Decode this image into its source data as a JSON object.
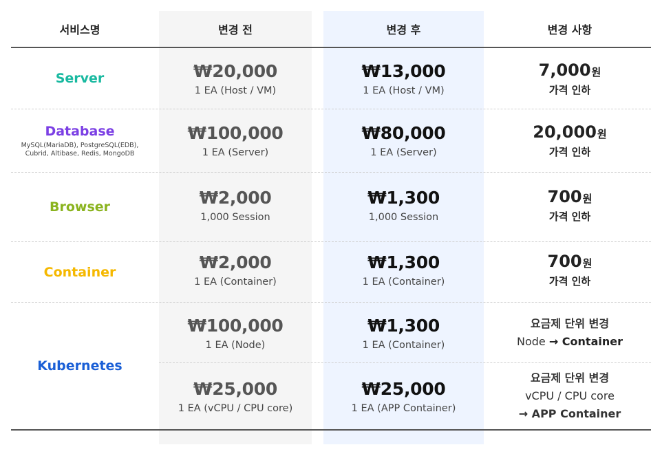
{
  "header": {
    "service": "서비스명",
    "before": "변경 전",
    "after": "변경 후",
    "change": "변경 사항"
  },
  "colors": {
    "server": "#19b9a0",
    "database": "#7b3fe4",
    "browser": "#8ab31e",
    "container": "#f5b800",
    "kubernetes": "#1a5fd6"
  },
  "rows": [
    {
      "service": "Server",
      "sub": "",
      "before_price": "₩20,000",
      "before_unit": "1 EA (Host / VM)",
      "after_price": "₩13,000",
      "after_unit": "1 EA (Host / VM)",
      "change_amount": "7,000",
      "change_won": "원",
      "change_note": "가격 인하"
    },
    {
      "service": "Database",
      "sub": "MySQL(MariaDB), PostgreSQL(EDB),\nCubrid, Altibase, Redis, MongoDB",
      "before_price": "₩100,000",
      "before_unit": "1 EA (Server)",
      "after_price": "₩80,000",
      "after_unit": "1 EA (Server)",
      "change_amount": "20,000",
      "change_won": "원",
      "change_note": "가격 인하"
    },
    {
      "service": "Browser",
      "sub": "",
      "before_price": "₩2,000",
      "before_unit": "1,000 Session",
      "after_price": "₩1,300",
      "after_unit": "1,000 Session",
      "change_amount": "700",
      "change_won": "원",
      "change_note": "가격 인하"
    },
    {
      "service": "Container",
      "sub": "",
      "before_price": "₩2,000",
      "before_unit": "1 EA (Container)",
      "after_price": "₩1,300",
      "after_unit": "1 EA (Container)",
      "change_amount": "700",
      "change_won": "원",
      "change_note": "가격 인하"
    },
    {
      "service": "Kubernetes",
      "sub_rows": [
        {
          "before_price": "₩100,000",
          "before_unit": "1 EA (Node)",
          "after_price": "₩1,300",
          "after_unit": "1 EA (Container)",
          "change_line1": "요금제 단위 변경",
          "change_line2_pre": "Node ",
          "change_line2_bold": "→ Container"
        },
        {
          "before_price": "₩25,000",
          "before_unit": "1 EA (vCPU / CPU core)",
          "after_price": "₩25,000",
          "after_unit": "1 EA (APP Container)",
          "change_line1": "요금제 단위 변경",
          "change_line2": "vCPU / CPU core",
          "change_line3": "→ APP Container"
        }
      ]
    }
  ]
}
